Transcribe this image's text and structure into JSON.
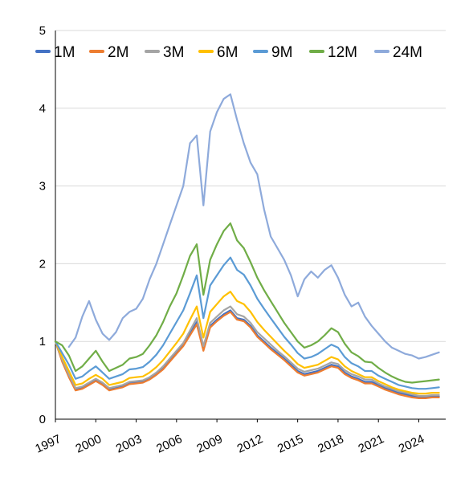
{
  "chart_data": {
    "type": "line",
    "title": "",
    "xlabel": "",
    "ylabel": "",
    "xlim": [
      1997,
      2026
    ],
    "ylim": [
      0,
      5
    ],
    "grid": true,
    "legend_position": "top",
    "x_ticks": [
      "1997",
      "2000",
      "2003",
      "2006",
      "2009",
      "2012",
      "2015",
      "2018",
      "2021",
      "2024"
    ],
    "y_ticks": [
      "0",
      "1",
      "2",
      "3",
      "4",
      "5"
    ],
    "x": [
      1997,
      1997.5,
      1998,
      1998.5,
      1999,
      1999.5,
      2000,
      2000.5,
      2001,
      2001.5,
      2002,
      2002.5,
      2003,
      2003.5,
      2004,
      2004.5,
      2005,
      2005.5,
      2006,
      2006.5,
      2007,
      2007.5,
      2008,
      2008.5,
      2009,
      2009.5,
      2010,
      2010.5,
      2011,
      2011.5,
      2012,
      2012.5,
      2013,
      2013.5,
      2014,
      2014.5,
      2015,
      2015.5,
      2016,
      2016.5,
      2017,
      2017.5,
      2018,
      2018.5,
      2019,
      2019.5,
      2020,
      2020.5,
      2021,
      2021.5,
      2022,
      2022.5,
      2023,
      2023.5,
      2024,
      2024.5,
      2025,
      2025.5
    ],
    "series": [
      {
        "name": "1M",
        "color": "#4472c4",
        "values": [
          1.0,
          0.75,
          0.55,
          0.38,
          0.4,
          0.45,
          0.5,
          0.45,
          0.38,
          0.4,
          0.42,
          0.46,
          0.47,
          0.48,
          0.52,
          0.58,
          0.65,
          0.75,
          0.85,
          0.95,
          1.1,
          1.25,
          0.9,
          1.2,
          1.28,
          1.35,
          1.4,
          1.3,
          1.28,
          1.2,
          1.08,
          1.0,
          0.92,
          0.85,
          0.78,
          0.7,
          0.62,
          0.58,
          0.6,
          0.62,
          0.66,
          0.7,
          0.68,
          0.6,
          0.55,
          0.52,
          0.48,
          0.48,
          0.44,
          0.4,
          0.37,
          0.34,
          0.32,
          0.3,
          0.28,
          0.28,
          0.29,
          0.29
        ]
      },
      {
        "name": "2M",
        "color": "#ed7d31",
        "values": [
          1.0,
          0.74,
          0.54,
          0.37,
          0.39,
          0.44,
          0.49,
          0.44,
          0.37,
          0.39,
          0.41,
          0.45,
          0.46,
          0.47,
          0.51,
          0.57,
          0.64,
          0.74,
          0.84,
          0.94,
          1.08,
          1.22,
          0.88,
          1.18,
          1.26,
          1.33,
          1.38,
          1.28,
          1.26,
          1.18,
          1.06,
          0.98,
          0.9,
          0.83,
          0.76,
          0.68,
          0.6,
          0.56,
          0.58,
          0.6,
          0.64,
          0.68,
          0.66,
          0.58,
          0.53,
          0.5,
          0.46,
          0.46,
          0.42,
          0.38,
          0.35,
          0.32,
          0.3,
          0.28,
          0.27,
          0.27,
          0.28,
          0.28
        ]
      },
      {
        "name": "3M",
        "color": "#a5a5a5",
        "values": [
          1.0,
          0.77,
          0.57,
          0.4,
          0.42,
          0.47,
          0.52,
          0.47,
          0.4,
          0.42,
          0.44,
          0.48,
          0.49,
          0.5,
          0.54,
          0.6,
          0.68,
          0.78,
          0.88,
          0.98,
          1.14,
          1.3,
          0.94,
          1.24,
          1.32,
          1.4,
          1.45,
          1.35,
          1.32,
          1.24,
          1.12,
          1.04,
          0.96,
          0.88,
          0.81,
          0.73,
          0.65,
          0.61,
          0.63,
          0.65,
          0.69,
          0.73,
          0.71,
          0.63,
          0.58,
          0.55,
          0.51,
          0.51,
          0.46,
          0.42,
          0.39,
          0.36,
          0.34,
          0.32,
          0.3,
          0.3,
          0.31,
          0.31
        ]
      },
      {
        "name": "6M",
        "color": "#ffc000",
        "values": [
          1.0,
          0.8,
          0.62,
          0.44,
          0.46,
          0.52,
          0.57,
          0.52,
          0.44,
          0.46,
          0.48,
          0.53,
          0.54,
          0.55,
          0.6,
          0.67,
          0.76,
          0.87,
          0.98,
          1.1,
          1.28,
          1.45,
          1.05,
          1.38,
          1.48,
          1.58,
          1.64,
          1.52,
          1.48,
          1.38,
          1.25,
          1.15,
          1.06,
          0.97,
          0.88,
          0.8,
          0.71,
          0.66,
          0.68,
          0.7,
          0.75,
          0.8,
          0.77,
          0.68,
          0.62,
          0.58,
          0.54,
          0.54,
          0.49,
          0.45,
          0.41,
          0.38,
          0.36,
          0.34,
          0.33,
          0.33,
          0.34,
          0.34
        ]
      },
      {
        "name": "9M",
        "color": "#5b9bd5",
        "values": [
          1.0,
          0.85,
          0.7,
          0.52,
          0.55,
          0.62,
          0.68,
          0.6,
          0.52,
          0.55,
          0.58,
          0.64,
          0.65,
          0.67,
          0.74,
          0.83,
          0.95,
          1.1,
          1.25,
          1.4,
          1.62,
          1.85,
          1.3,
          1.72,
          1.85,
          1.98,
          2.08,
          1.92,
          1.86,
          1.72,
          1.55,
          1.42,
          1.3,
          1.18,
          1.06,
          0.96,
          0.85,
          0.78,
          0.8,
          0.84,
          0.9,
          0.96,
          0.92,
          0.8,
          0.72,
          0.68,
          0.62,
          0.62,
          0.56,
          0.52,
          0.48,
          0.44,
          0.42,
          0.4,
          0.39,
          0.39,
          0.4,
          0.41
        ]
      },
      {
        "name": "12M",
        "color": "#70ad47",
        "values": [
          1.0,
          0.95,
          0.82,
          0.62,
          0.68,
          0.78,
          0.88,
          0.74,
          0.62,
          0.66,
          0.7,
          0.78,
          0.8,
          0.84,
          0.95,
          1.08,
          1.25,
          1.45,
          1.62,
          1.85,
          2.1,
          2.25,
          1.6,
          2.05,
          2.25,
          2.42,
          2.52,
          2.3,
          2.2,
          2.02,
          1.82,
          1.66,
          1.52,
          1.38,
          1.24,
          1.12,
          1.0,
          0.92,
          0.95,
          1.0,
          1.08,
          1.17,
          1.12,
          0.97,
          0.86,
          0.81,
          0.74,
          0.73,
          0.66,
          0.6,
          0.55,
          0.51,
          0.48,
          0.47,
          0.48,
          0.49,
          0.5,
          0.51
        ]
      },
      {
        "name": "24M",
        "color": "#8eaadb",
        "values": [
          null,
          null,
          0.93,
          1.05,
          1.32,
          1.52,
          1.28,
          1.1,
          1.02,
          1.12,
          1.3,
          1.38,
          1.42,
          1.55,
          1.8,
          2.0,
          2.25,
          2.5,
          2.75,
          3.0,
          3.55,
          3.65,
          2.75,
          3.7,
          3.95,
          4.12,
          4.18,
          3.85,
          3.55,
          3.3,
          3.15,
          2.7,
          2.35,
          2.2,
          2.05,
          1.85,
          1.58,
          1.8,
          1.9,
          1.82,
          1.92,
          1.98,
          1.82,
          1.6,
          1.45,
          1.5,
          1.32,
          1.2,
          1.1,
          1.0,
          0.92,
          0.88,
          0.84,
          0.82,
          0.78,
          0.8,
          0.83,
          0.86
        ]
      }
    ]
  }
}
